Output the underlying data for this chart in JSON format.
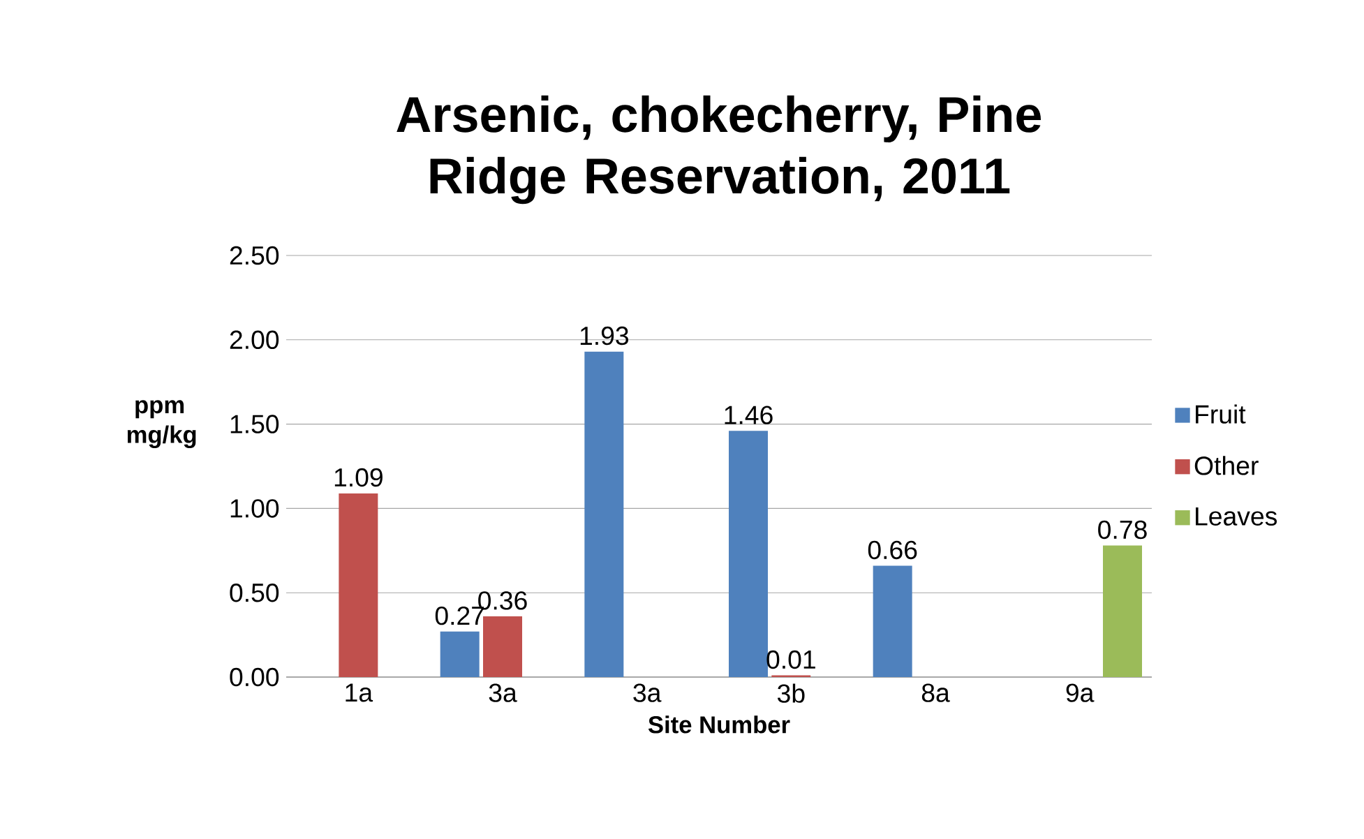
{
  "chart_data": {
    "type": "bar",
    "title": "Arsenic, chokecherry, Pine Ridge Reservation, 2011",
    "xlabel": "Site Number",
    "ylabel": "ppm mg/kg",
    "categories": [
      "1a",
      "3a",
      "3a",
      "3b",
      "8a",
      "9a"
    ],
    "series": [
      {
        "name": "Fruit",
        "color": "#4f81bd",
        "values": [
          null,
          0.27,
          1.93,
          1.46,
          0.66,
          null
        ]
      },
      {
        "name": "Other",
        "color": "#c0504d",
        "values": [
          1.09,
          0.36,
          null,
          0.01,
          null,
          null
        ]
      },
      {
        "name": "Leaves",
        "color": "#9bbb59",
        "values": [
          null,
          null,
          null,
          null,
          null,
          0.78
        ]
      }
    ],
    "ylim": [
      0,
      2.5
    ],
    "yticks": [
      {
        "value": 0,
        "label": "0.00"
      },
      {
        "value": 0.5,
        "label": "0.50"
      },
      {
        "value": 1,
        "label": "1.00"
      },
      {
        "value": 1.5,
        "label": "1.50"
      },
      {
        "value": 2,
        "label": "2.00"
      },
      {
        "value": 2.5,
        "label": "2.50"
      }
    ],
    "grid": "y",
    "legend": "right",
    "data_labels": true
  }
}
